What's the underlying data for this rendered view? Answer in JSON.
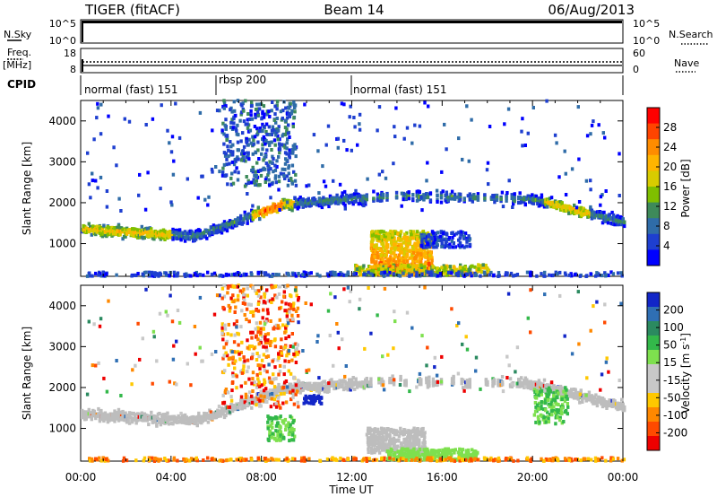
{
  "header": {
    "radar": "TIGER (fitACF)",
    "beam": "Beam 14",
    "date": "06/Aug/2013"
  },
  "chart_data": [
    {
      "type": "line",
      "panel": "noise",
      "left_label": "N.Sky",
      "right_label": "N.Search",
      "left_ticks": [
        "10^5",
        "10^0"
      ],
      "right_ticks": [
        "10^5",
        "10^0"
      ]
    },
    {
      "type": "line",
      "panel": "frequency",
      "left_label": "Freq.",
      "left_unit": "[MHz]",
      "right_label": "Nave",
      "left_ticks": [
        "18",
        "8"
      ],
      "right_ticks": [
        "60",
        "0"
      ]
    },
    {
      "type": "table",
      "panel": "cpid",
      "label": "CPID",
      "segments": [
        {
          "name": "normal (fast) 151",
          "start_hour": 0,
          "end_hour": 6
        },
        {
          "name": "rbsp 200",
          "start_hour": 6,
          "end_hour": 12
        },
        {
          "name": "normal (fast) 151",
          "start_hour": 12,
          "end_hour": 24
        }
      ]
    },
    {
      "type": "heatmap",
      "panel": "power",
      "ylabel": "Slant Range [km]",
      "xlim": [
        0,
        24
      ],
      "ylim": [
        200,
        4500
      ],
      "yticks": [
        "4000",
        "3000",
        "2000",
        "1000"
      ],
      "colorbar": {
        "label": "Power [dB]",
        "ticks": [
          "28",
          "24",
          "20",
          "16",
          "12",
          "8",
          "4"
        ],
        "colors": [
          "#ff0000",
          "#ff4400",
          "#ff8c00",
          "#ffb400",
          "#d8cc00",
          "#7fbf00",
          "#3e8a5a",
          "#2f6ca8",
          "#1e3fd0",
          "#0000ff"
        ]
      }
    },
    {
      "type": "heatmap",
      "panel": "velocity",
      "ylabel": "Slant Range [km]",
      "xlabel": "Time UT",
      "xlim": [
        0,
        24
      ],
      "ylim": [
        200,
        4500
      ],
      "yticks": [
        "4000",
        "3000",
        "2000",
        "1000"
      ],
      "xticks": [
        "00:00",
        "04:00",
        "08:00",
        "12:00",
        "16:00",
        "20:00",
        "00:00"
      ],
      "colorbar": {
        "label": "Velocity [m s",
        "label_sup": "-1",
        "label_close": "]",
        "ticks": [
          "200",
          "100",
          "50",
          "15",
          "-15",
          "-50",
          "-100",
          "-200"
        ],
        "colors": [
          "#1226c8",
          "#2f6fb4",
          "#2b8a60",
          "#33b84a",
          "#7ee04e",
          "#c8c8c8",
          "#c8c8c8",
          "#ffc800",
          "#ff8800",
          "#ff4a00",
          "#ee0000"
        ],
        "ground_scatter_color": "#bdbdbd"
      }
    }
  ]
}
